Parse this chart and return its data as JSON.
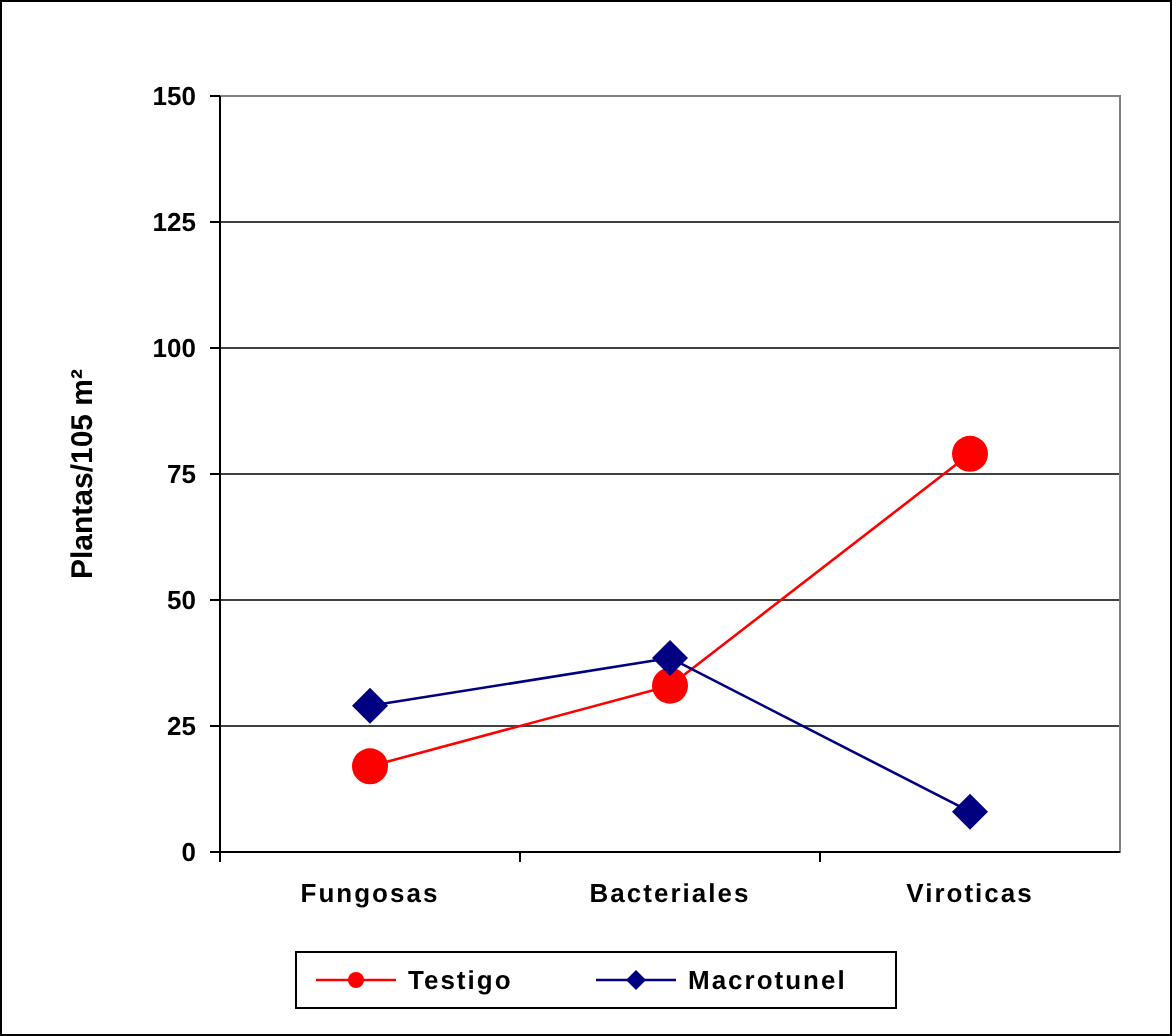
{
  "chart_data": {
    "type": "line",
    "ylabel": "Plantas/105 m²",
    "categories": [
      "Fungosas",
      "Bacteriales",
      "Viroticas"
    ],
    "series": [
      {
        "name": "Testigo",
        "color": "#ff0000",
        "marker": "circle",
        "values": [
          17,
          33,
          79
        ]
      },
      {
        "name": "Macrotunel",
        "color": "#000080",
        "marker": "diamond",
        "values": [
          29,
          38.5,
          8
        ]
      }
    ],
    "ylim": [
      0,
      150
    ],
    "yticks": [
      0,
      25,
      50,
      75,
      100,
      125,
      150
    ],
    "grid": "y",
    "legend": "bottom"
  }
}
